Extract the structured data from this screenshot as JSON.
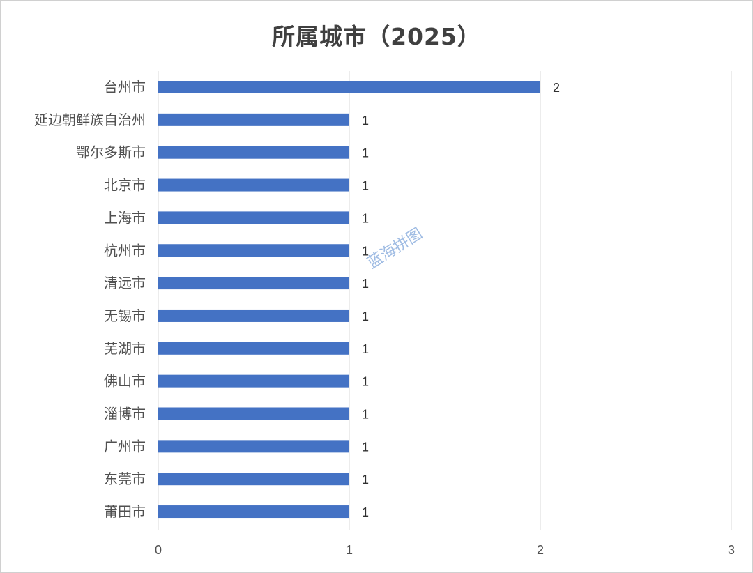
{
  "chart_data": {
    "type": "bar",
    "orientation": "horizontal",
    "title": "所属城市（2025）",
    "categories": [
      "台州市",
      "延边朝鲜族自治州",
      "鄂尔多斯市",
      "北京市",
      "上海市",
      "杭州市",
      "清远市",
      "无锡市",
      "芜湖市",
      "佛山市",
      "淄博市",
      "广州市",
      "东莞市",
      "莆田市"
    ],
    "values": [
      2,
      1,
      1,
      1,
      1,
      1,
      1,
      1,
      1,
      1,
      1,
      1,
      1,
      1
    ],
    "xlim": [
      0,
      3
    ],
    "xticks": [
      "0",
      "1",
      "2",
      "3"
    ],
    "grid": true,
    "data_labels": true,
    "bar_color": "#4472c4",
    "gridline_color": "#d9d9d9"
  },
  "watermark": "蓝海拼图"
}
